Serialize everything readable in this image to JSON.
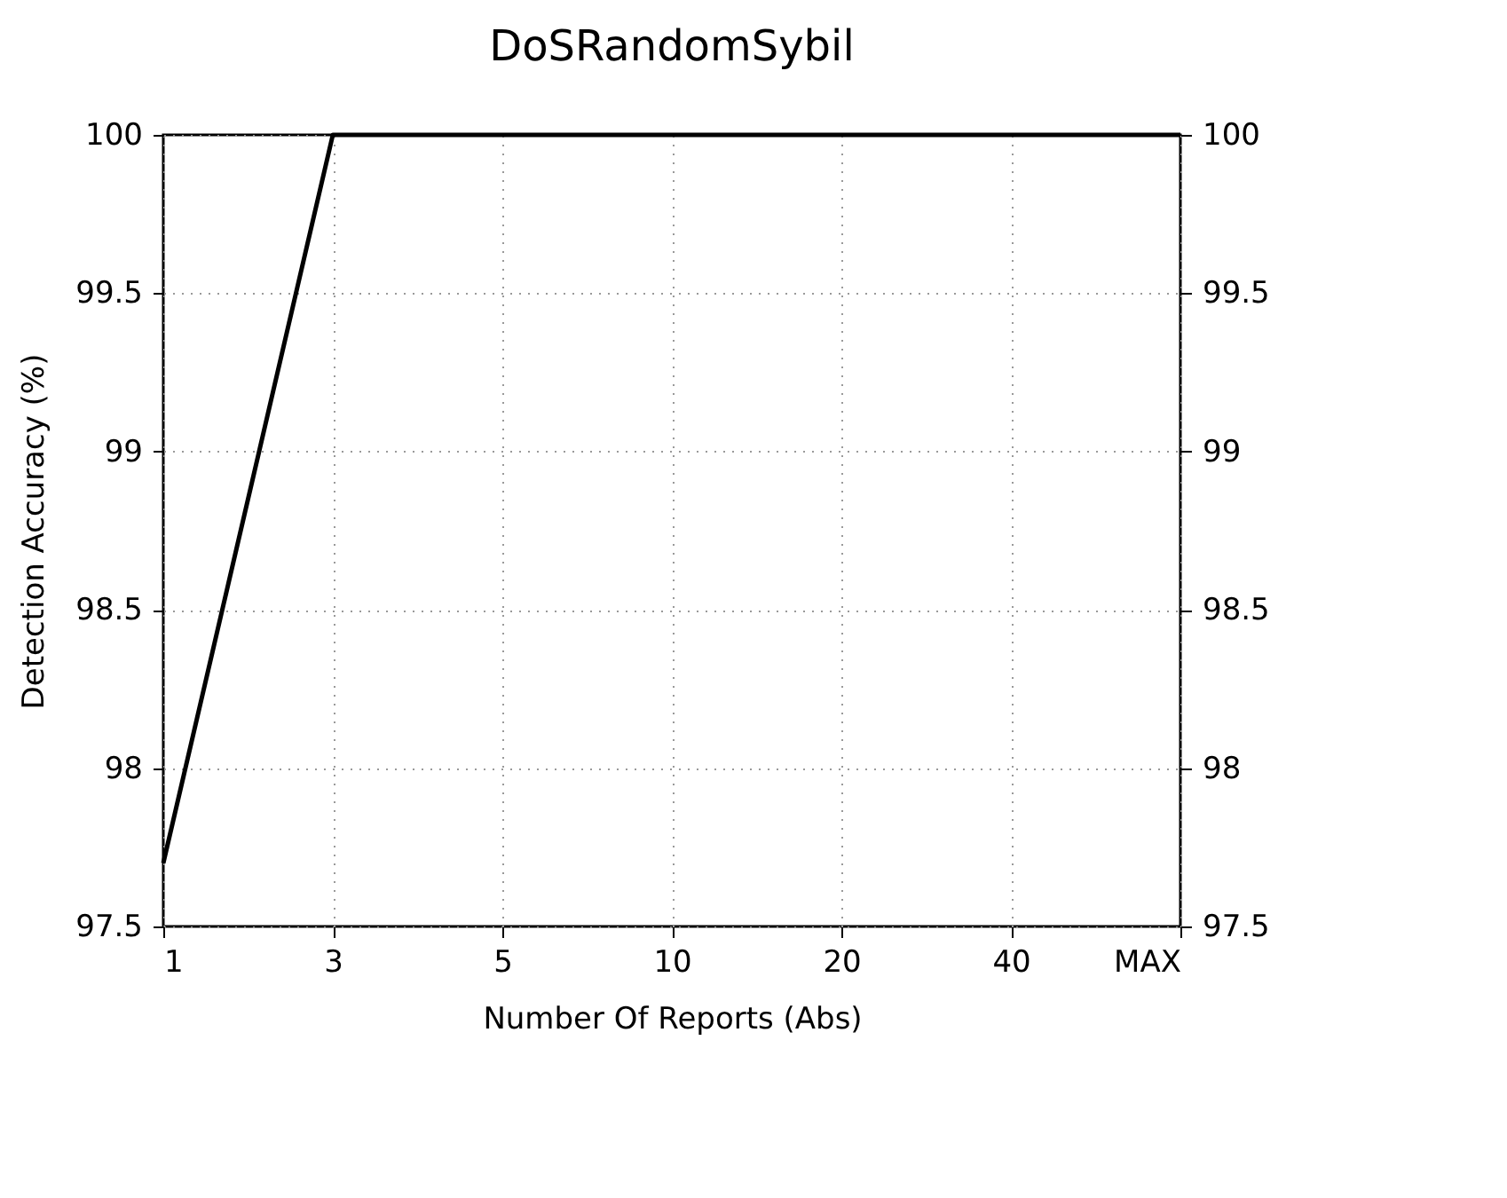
{
  "chart_data": {
    "type": "line",
    "title": "DoSRandomSybil",
    "xlabel": "Number Of Reports (Abs)",
    "ylabel": "Detection Accuracy (%)",
    "categories": [
      "1",
      "3",
      "5",
      "10",
      "20",
      "40",
      "MAX"
    ],
    "series": [
      {
        "color": "#000000",
        "values": [
          97.7,
          100,
          100,
          100,
          100,
          100,
          100
        ]
      }
    ],
    "ylim": [
      97.5,
      100
    ],
    "yticks": [
      97.5,
      98,
      98.5,
      99,
      99.5,
      100
    ],
    "y2lim": [
      97.5,
      100
    ],
    "y2ticks": [
      97.5,
      98,
      98.5,
      99,
      99.5,
      100
    ],
    "grid": true,
    "legend": false,
    "marker": "none",
    "line_style": "solid"
  }
}
